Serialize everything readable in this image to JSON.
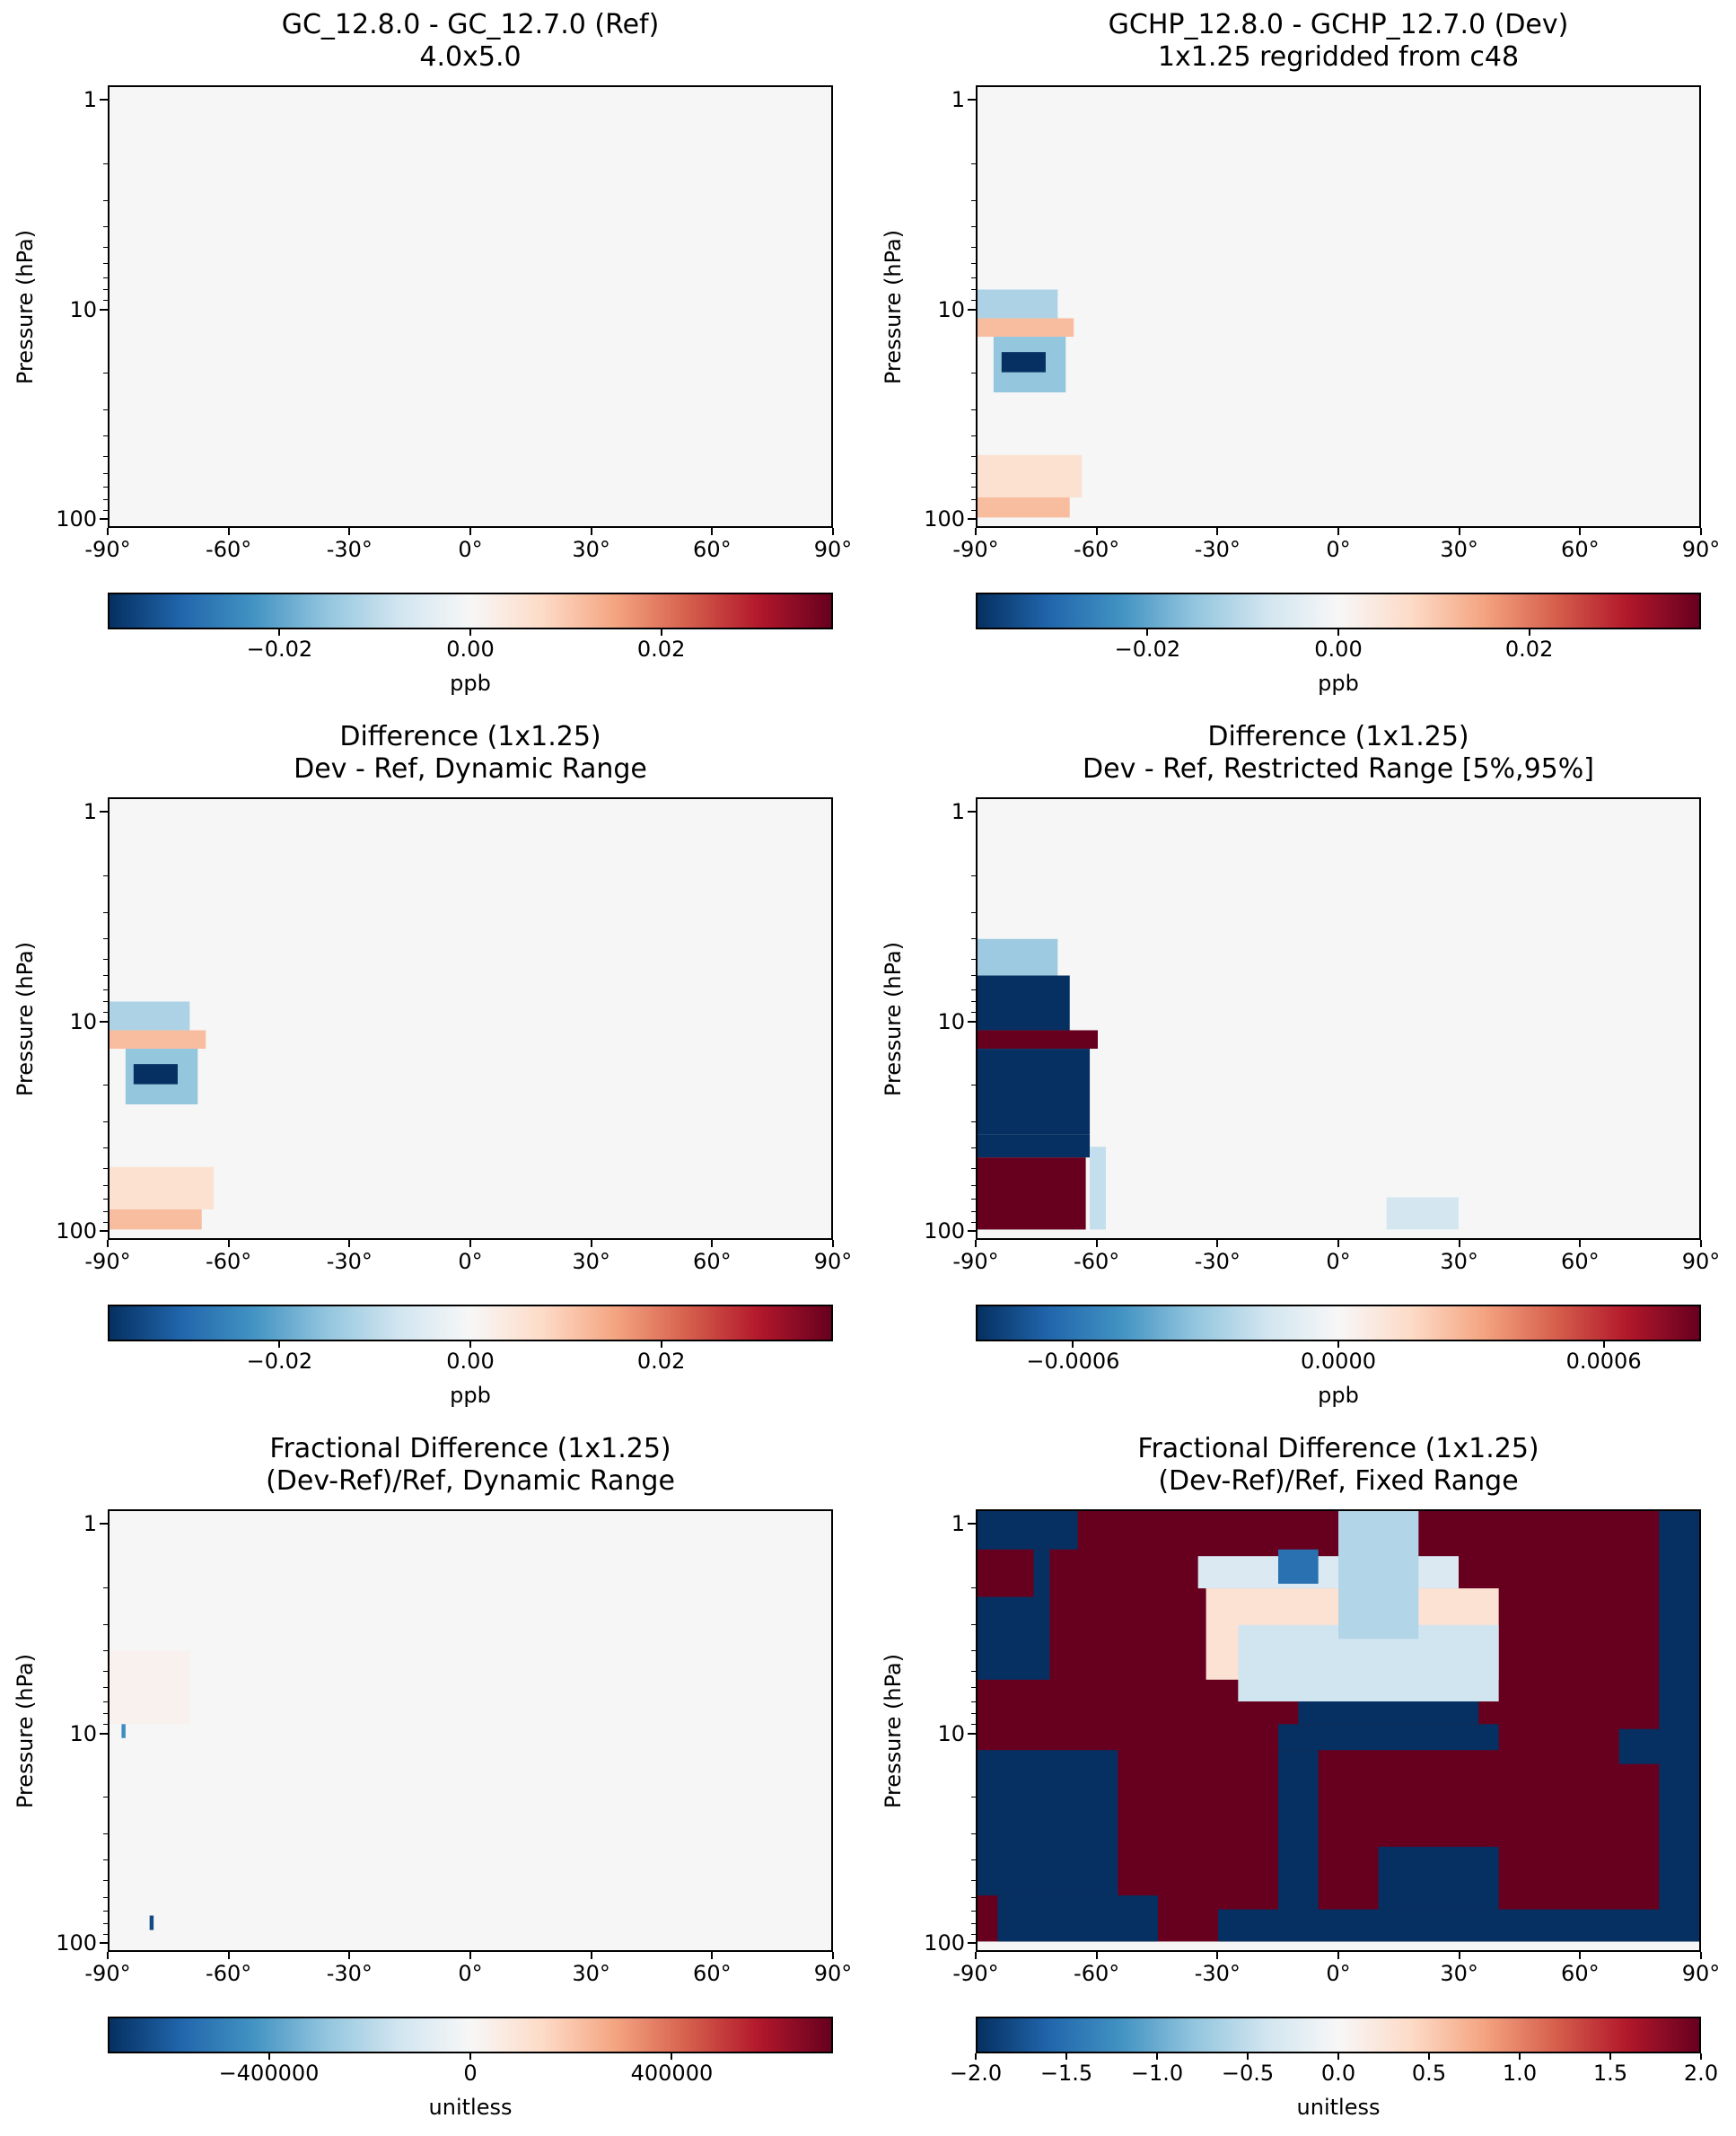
{
  "axis": {
    "xticks": [
      "-90°",
      "-60°",
      "-30°",
      "0°",
      "30°",
      "60°",
      "90°"
    ],
    "yticks": [
      "1",
      "10",
      "100"
    ],
    "ylabel": "Pressure (hPa)"
  },
  "colors": {
    "colormap": [
      "#053061",
      "#2166ac",
      "#4393c3",
      "#92c5de",
      "#d1e5f0",
      "#f7f7f7",
      "#fddbc7",
      "#f4a582",
      "#d6604d",
      "#b2182b",
      "#67001f"
    ],
    "background": "#f6f6f6"
  },
  "chart_data": [
    {
      "type": "heatmap",
      "title": "GC_12.8.0 - GC_12.7.0 (Ref)",
      "subtitle": "4.0x5.0",
      "xlabel": "",
      "ylabel": "Pressure (hPa)",
      "xlim": [
        -90,
        90
      ],
      "ylim": [
        100,
        1
      ],
      "yscale": "log",
      "colorbar": {
        "range": [
          -0.038,
          0.038
        ],
        "ticks": [
          "−0.02",
          "0.00",
          "0.02"
        ],
        "tick_values": [
          -0.02,
          0,
          0.02
        ],
        "unit": "ppb"
      },
      "features": []
    },
    {
      "type": "heatmap",
      "title": "GCHP_12.8.0 - GCHP_12.7.0 (Dev)",
      "subtitle": "1x1.25 regridded from c48",
      "xlabel": "",
      "ylabel": "Pressure (hPa)",
      "xlim": [
        -90,
        90
      ],
      "ylim": [
        100,
        1
      ],
      "yscale": "log",
      "colorbar": {
        "range": [
          -0.038,
          0.038
        ],
        "ticks": [
          "−0.02",
          "0.00",
          "0.02"
        ],
        "tick_values": [
          -0.02,
          0,
          0.02
        ],
        "unit": "ppb"
      },
      "features": [
        {
          "lat": [
            -90,
            -70
          ],
          "p": [
            8,
            11
          ],
          "value": -0.012
        },
        {
          "lat": [
            -90,
            -66
          ],
          "p": [
            11,
            13.5
          ],
          "value": 0.012
        },
        {
          "lat": [
            -86,
            -68
          ],
          "p": [
            13.5,
            25
          ],
          "value": -0.015
        },
        {
          "lat": [
            -84,
            -73
          ],
          "p": [
            16,
            20
          ],
          "value": -0.038
        },
        {
          "lat": [
            -90,
            -64
          ],
          "p": [
            50,
            80
          ],
          "value": 0.006
        },
        {
          "lat": [
            -90,
            -67
          ],
          "p": [
            80,
            100
          ],
          "value": 0.012
        }
      ]
    },
    {
      "type": "heatmap",
      "title": "Difference (1x1.25)",
      "subtitle": "Dev - Ref, Dynamic Range",
      "xlabel": "",
      "ylabel": "Pressure (hPa)",
      "xlim": [
        -90,
        90
      ],
      "ylim": [
        100,
        1
      ],
      "yscale": "log",
      "colorbar": {
        "range": [
          -0.038,
          0.038
        ],
        "ticks": [
          "−0.02",
          "0.00",
          "0.02"
        ],
        "tick_values": [
          -0.02,
          0,
          0.02
        ],
        "unit": "ppb"
      },
      "features": [
        {
          "lat": [
            -90,
            -70
          ],
          "p": [
            8,
            11
          ],
          "value": -0.012
        },
        {
          "lat": [
            -90,
            -66
          ],
          "p": [
            11,
            13.5
          ],
          "value": 0.012
        },
        {
          "lat": [
            -86,
            -68
          ],
          "p": [
            13.5,
            25
          ],
          "value": -0.015
        },
        {
          "lat": [
            -84,
            -73
          ],
          "p": [
            16,
            20
          ],
          "value": -0.038
        },
        {
          "lat": [
            -90,
            -64
          ],
          "p": [
            50,
            80
          ],
          "value": 0.006
        },
        {
          "lat": [
            -90,
            -67
          ],
          "p": [
            80,
            100
          ],
          "value": 0.012
        }
      ]
    },
    {
      "type": "heatmap",
      "title": "Difference (1x1.25)",
      "subtitle": "Dev - Ref, Restricted Range [5%,95%]",
      "xlabel": "",
      "ylabel": "Pressure (hPa)",
      "xlim": [
        -90,
        90
      ],
      "ylim": [
        100,
        1
      ],
      "yscale": "log",
      "colorbar": {
        "range": [
          -0.00082,
          0.00082
        ],
        "ticks": [
          "−0.0006",
          "0.0000",
          "0.0006"
        ],
        "tick_values": [
          -0.0006,
          0,
          0.0006
        ],
        "unit": "ppb"
      },
      "features": [
        {
          "lat": [
            -90,
            -70
          ],
          "p": [
            4,
            6
          ],
          "value": -0.0003
        },
        {
          "lat": [
            -90,
            -67
          ],
          "p": [
            6,
            11
          ],
          "value": -0.00082
        },
        {
          "lat": [
            -90,
            -60
          ],
          "p": [
            11,
            13.5
          ],
          "value": 0.00082
        },
        {
          "lat": [
            -90,
            -62
          ],
          "p": [
            13.5,
            35
          ],
          "value": -0.00082
        },
        {
          "lat": [
            -90,
            -62
          ],
          "p": [
            35,
            45
          ],
          "value": -0.00082
        },
        {
          "lat": [
            -90,
            -63
          ],
          "p": [
            45,
            100
          ],
          "value": 0.00082
        },
        {
          "lat": [
            -62,
            -58
          ],
          "p": [
            40,
            100
          ],
          "value": -0.0002
        },
        {
          "lat": [
            12,
            30
          ],
          "p": [
            70,
            100
          ],
          "value": -0.00015
        }
      ]
    },
    {
      "type": "heatmap",
      "title": "Fractional Difference (1x1.25)",
      "subtitle": "(Dev-Ref)/Ref, Dynamic Range",
      "xlabel": "",
      "ylabel": "Pressure (hPa)",
      "xlim": [
        -90,
        90
      ],
      "ylim": [
        100,
        1
      ],
      "yscale": "log",
      "colorbar": {
        "range": [
          -720000,
          720000
        ],
        "ticks": [
          "−400000",
          "0",
          "400000"
        ],
        "tick_values": [
          -400000,
          0,
          400000
        ],
        "unit": "unitless"
      },
      "features": [
        {
          "lat": [
            -87,
            -86
          ],
          "p": [
            8.5,
            10.5
          ],
          "value": -450000
        },
        {
          "lat": [
            -80,
            -79
          ],
          "p": [
            75,
            88
          ],
          "value": -650000
        },
        {
          "lat": [
            -90,
            -70
          ],
          "p": [
            4,
            9
          ],
          "value": 30000
        }
      ]
    },
    {
      "type": "heatmap",
      "title": "Fractional Difference (1x1.25)",
      "subtitle": "(Dev-Ref)/Ref, Fixed Range",
      "xlabel": "",
      "ylabel": "Pressure (hPa)",
      "xlim": [
        -90,
        90
      ],
      "ylim": [
        100,
        1
      ],
      "yscale": "log",
      "colorbar": {
        "range": [
          -2.0,
          2.0
        ],
        "ticks": [
          "−2.0",
          "−1.5",
          "−1.0",
          "−0.5",
          "0.0",
          "0.5",
          "1.0",
          "1.5",
          "2.0"
        ],
        "tick_values": [
          -2.0,
          -1.5,
          -1.0,
          -0.5,
          0,
          0.5,
          1.0,
          1.5,
          2.0
        ],
        "unit": "unitless"
      },
      "features": [
        {
          "lat": [
            -90,
            90
          ],
          "p": [
            0.7,
            100
          ],
          "value": 2.0
        },
        {
          "lat": [
            -90,
            -65
          ],
          "p": [
            0.7,
            1.3
          ],
          "value": -2.0
        },
        {
          "lat": [
            -90,
            -72
          ],
          "p": [
            2.2,
            5.5
          ],
          "value": -2.0
        },
        {
          "lat": [
            -76,
            -72
          ],
          "p": [
            1.3,
            2.5
          ],
          "value": -2.0
        },
        {
          "lat": [
            -90,
            -55
          ],
          "p": [
            12,
            60
          ],
          "value": -2.0
        },
        {
          "lat": [
            -85,
            -45
          ],
          "p": [
            60,
            100
          ],
          "value": -2.0
        },
        {
          "lat": [
            -35,
            30
          ],
          "p": [
            1.4,
            2.0
          ],
          "value": -0.3
        },
        {
          "lat": [
            -33,
            40
          ],
          "p": [
            2.0,
            5.5
          ],
          "value": 0.3
        },
        {
          "lat": [
            -25,
            40
          ],
          "p": [
            3.0,
            7.0
          ],
          "value": -0.4
        },
        {
          "lat": [
            -10,
            35
          ],
          "p": [
            7.0,
            9.0
          ],
          "value": -2.0
        },
        {
          "lat": [
            -15,
            -5
          ],
          "p": [
            1.3,
            1.9
          ],
          "value": -1.5
        },
        {
          "lat": [
            0,
            20
          ],
          "p": [
            0.8,
            3.5
          ],
          "value": -0.6
        },
        {
          "lat": [
            -15,
            40
          ],
          "p": [
            9.0,
            12.0
          ],
          "value": -2.0
        },
        {
          "lat": [
            -15,
            -5
          ],
          "p": [
            12,
            80
          ],
          "value": -2.0
        },
        {
          "lat": [
            -30,
            90
          ],
          "p": [
            70,
            100
          ],
          "value": -2.0
        },
        {
          "lat": [
            10,
            40
          ],
          "p": [
            35,
            70
          ],
          "value": -2.0
        },
        {
          "lat": [
            80,
            90
          ],
          "p": [
            0.7,
            100
          ],
          "value": -2.0
        },
        {
          "lat": [
            70,
            88
          ],
          "p": [
            9.5,
            14
          ],
          "value": -2.0
        }
      ]
    }
  ]
}
